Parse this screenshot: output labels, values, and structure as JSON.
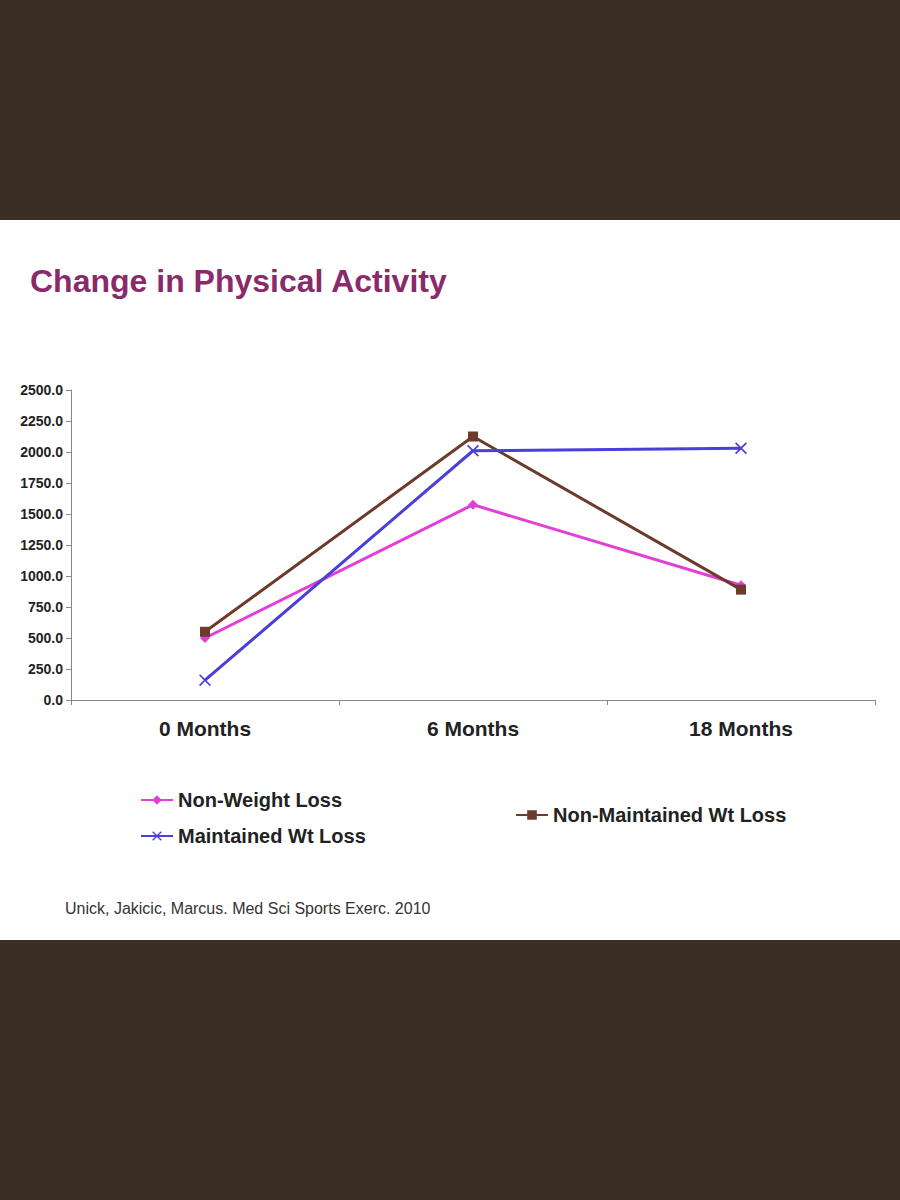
{
  "chart_data": {
    "type": "line",
    "title": "Change in Physical Activity",
    "annotations": [
      "Unick, Jakicic, Marcus. Med Sci Sports Exerc. 2010"
    ],
    "categories": [
      "0 Months",
      "6 Months",
      "18 Months"
    ],
    "series": [
      {
        "name": "Non-Weight Loss",
        "color": "#e040d8",
        "marker": "diamond",
        "values": [
          500,
          1575,
          925
        ]
      },
      {
        "name": "Non-Maintained Wt Loss",
        "color": "#6e3a2c",
        "marker": "square",
        "values": [
          550,
          2125,
          890
        ]
      },
      {
        "name": "Maintained Wt Loss",
        "color": "#4a3fd8",
        "marker": "x",
        "values": [
          160,
          2010,
          2030
        ]
      }
    ],
    "ylim": [
      0,
      2500
    ],
    "yticks": [
      {
        "value": 0,
        "label": "0.0"
      },
      {
        "value": 250,
        "label": "250.0"
      },
      {
        "value": 500,
        "label": "500.0"
      },
      {
        "value": 750,
        "label": "750.0"
      },
      {
        "value": 1000,
        "label": "1000.0"
      },
      {
        "value": 1250,
        "label": "1250.0"
      },
      {
        "value": 1500,
        "label": "1500.0"
      },
      {
        "value": 1750,
        "label": "1750.0"
      },
      {
        "value": 2000,
        "label": "2000.0"
      },
      {
        "value": 2250,
        "label": "2250.0"
      },
      {
        "value": 2500,
        "label": "2500.0"
      }
    ],
    "grid": false,
    "legend": "bottom"
  }
}
